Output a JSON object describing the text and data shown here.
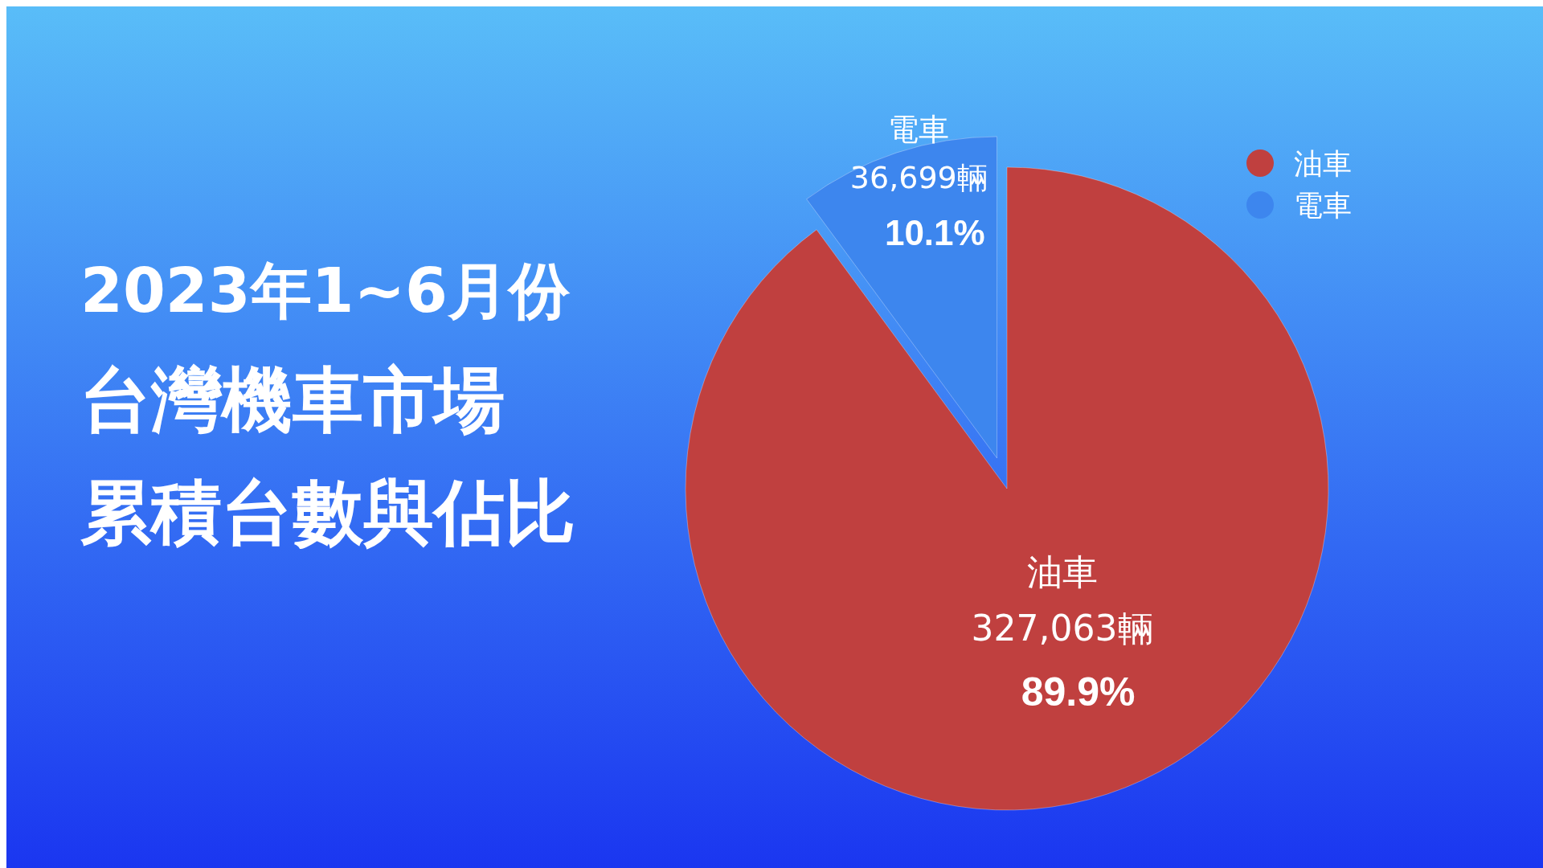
{
  "chart_data": {
    "type": "pie",
    "title": "台灣機車市場累積台數與佔比",
    "subtitle": "2023年1~6月份",
    "categories": [
      "油車",
      "電車"
    ],
    "values": [
      327063,
      36699
    ],
    "colors": [
      "#c0403f",
      "#3d86ee"
    ],
    "value_labels": [
      "327,063輛",
      "36,699輛"
    ],
    "annotations": [
      "89.9%",
      "10.1%"
    ],
    "legend": "top right"
  }
}
